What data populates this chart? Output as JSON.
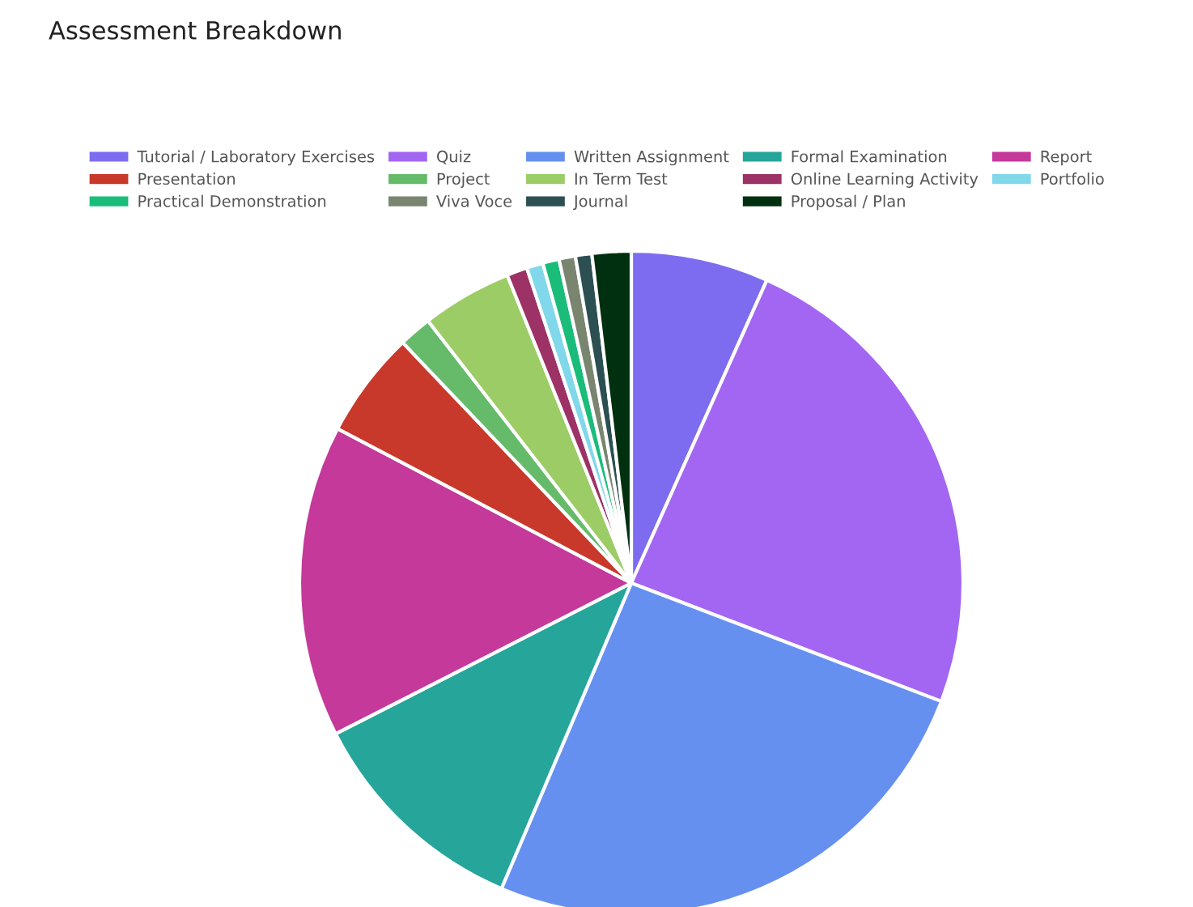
{
  "chart_data": {
    "type": "pie",
    "title": "Assessment Breakdown",
    "categories": [
      "Tutorial / Laboratory Exercises",
      "Quiz",
      "Written Assignment",
      "Formal Examination",
      "Report",
      "Presentation",
      "Project",
      "In Term Test",
      "Online Learning Activity",
      "Portfolio",
      "Practical Demonstration",
      "Viva Voce",
      "Journal",
      "Proposal / Plan"
    ],
    "values": [
      6.7,
      24.1,
      25.6,
      11.1,
      15.2,
      5.2,
      1.6,
      4.4,
      1.0,
      0.8,
      0.8,
      0.8,
      0.8,
      1.9
    ],
    "colors": [
      "#7e6cf0",
      "#a366f2",
      "#6690f0",
      "#26a69a",
      "#c4399a",
      "#c8392b",
      "#66bb6a",
      "#9ccc65",
      "#9c3266",
      "#80d8ea",
      "#1abc7a",
      "#7a8570",
      "#2c4f52",
      "#00300f"
    ],
    "legend": "top"
  }
}
